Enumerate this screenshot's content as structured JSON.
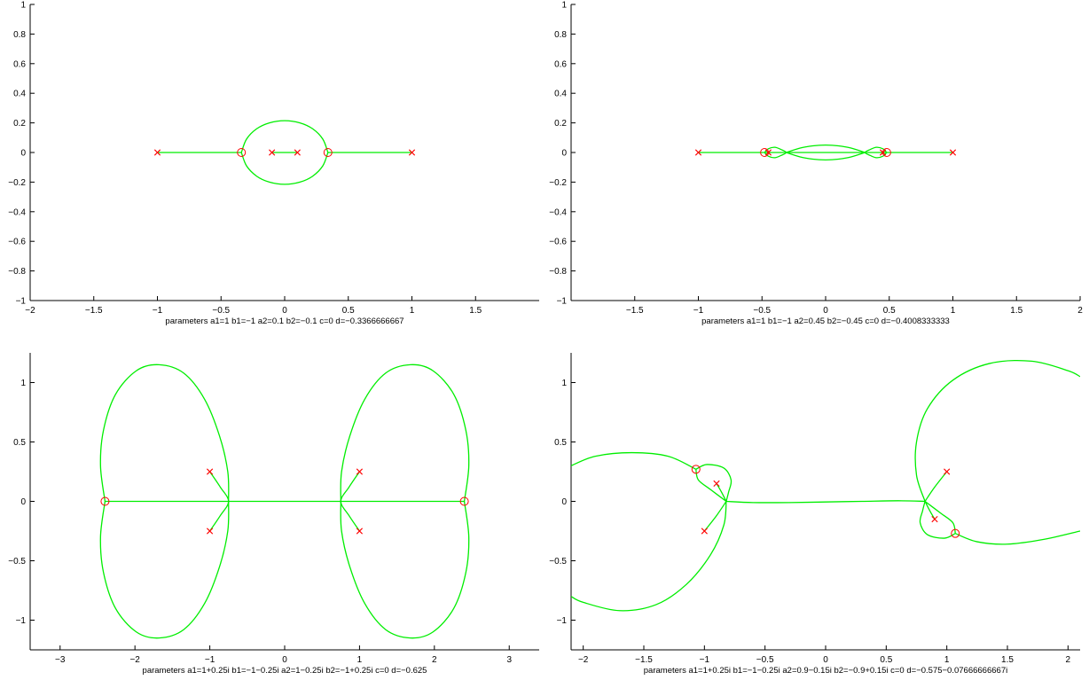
{
  "chart_data": [
    {
      "type": "scatter",
      "title": "",
      "xlabel": "parameters a1=1 b1=−1 a2=0.1 b2=−0.1 c=0 d=−0.3366666667",
      "ylabel": "",
      "xlim": [
        -2,
        2
      ],
      "ylim": [
        -1,
        1
      ],
      "xticks": [
        "−2",
        "−1.5",
        "−1",
        "−0.5",
        "0",
        "0.5",
        "1",
        "1.5"
      ],
      "xtick_values": [
        -2,
        -1.5,
        -1,
        -0.5,
        0,
        0.5,
        1,
        1.5
      ],
      "yticks": [
        "−1",
        "−0.8",
        "−0.6",
        "−0.4",
        "−0.2",
        "0",
        "0.2",
        "0.4",
        "0.6",
        "0.8",
        "1"
      ],
      "ytick_values": [
        -1,
        -0.8,
        -0.6,
        -0.4,
        -0.2,
        0,
        0.2,
        0.4,
        0.6,
        0.8,
        1
      ],
      "poles": [
        [
          -1,
          0
        ],
        [
          -0.1,
          0
        ],
        [
          0.1,
          0
        ],
        [
          1,
          0
        ]
      ],
      "zeros": [
        [
          -0.34,
          0
        ],
        [
          0.34,
          0
        ]
      ],
      "curves": [
        [
          [
            -0.34,
            0
          ],
          [
            -0.3,
            0.09
          ],
          [
            -0.22,
            0.16
          ],
          [
            -0.12,
            0.2
          ],
          [
            0,
            0.215
          ],
          [
            0.12,
            0.2
          ],
          [
            0.22,
            0.16
          ],
          [
            0.3,
            0.09
          ],
          [
            0.34,
            0
          ]
        ],
        [
          [
            -0.34,
            0
          ],
          [
            -0.3,
            -0.09
          ],
          [
            -0.22,
            -0.16
          ],
          [
            -0.12,
            -0.2
          ],
          [
            0,
            -0.215
          ],
          [
            0.12,
            -0.2
          ],
          [
            0.22,
            -0.16
          ],
          [
            0.3,
            -0.09
          ],
          [
            0.34,
            0
          ]
        ],
        [
          [
            -1,
            0
          ],
          [
            -0.34,
            0
          ]
        ],
        [
          [
            0.34,
            0
          ],
          [
            1,
            0
          ]
        ],
        [
          [
            -0.1,
            0
          ],
          [
            0.1,
            0
          ]
        ]
      ]
    },
    {
      "type": "scatter",
      "title": "",
      "xlabel": "parameters a1=1 b1=−1 a2=0.45 b2=−0.45 c=0 d=−0.4008333333",
      "ylabel": "",
      "xlim": [
        -2,
        2
      ],
      "ylim": [
        -1,
        1
      ],
      "xticks": [
        "−1.5",
        "−1",
        "−0.5",
        "0",
        "0.5",
        "1",
        "1.5",
        "2"
      ],
      "xtick_values": [
        -1.5,
        -1,
        -0.5,
        0,
        0.5,
        1,
        1.5,
        2
      ],
      "yticks": [
        "−1",
        "−0.8",
        "−0.6",
        "−0.4",
        "−0.2",
        "0",
        "0.2",
        "0.4",
        "0.6",
        "0.8",
        "1"
      ],
      "ytick_values": [
        -1,
        -0.8,
        -0.6,
        -0.4,
        -0.2,
        0,
        0.2,
        0.4,
        0.6,
        0.8,
        1
      ],
      "poles": [
        [
          -1,
          0
        ],
        [
          -0.45,
          0
        ],
        [
          0.45,
          0
        ],
        [
          1,
          0
        ]
      ],
      "zeros": [
        [
          -0.48,
          0
        ],
        [
          0.48,
          0
        ]
      ],
      "curves": [
        [
          [
            -0.31,
            0
          ],
          [
            -0.2,
            0.03
          ],
          [
            -0.1,
            0.045
          ],
          [
            0,
            0.05
          ],
          [
            0.1,
            0.045
          ],
          [
            0.2,
            0.03
          ],
          [
            0.31,
            0
          ]
        ],
        [
          [
            -0.31,
            0
          ],
          [
            -0.2,
            -0.03
          ],
          [
            -0.1,
            -0.045
          ],
          [
            0,
            -0.05
          ],
          [
            0.1,
            -0.045
          ],
          [
            0.2,
            -0.03
          ],
          [
            0.31,
            0
          ]
        ],
        [
          [
            -0.48,
            0
          ],
          [
            -0.45,
            0.025
          ],
          [
            -0.4,
            0.035
          ],
          [
            -0.35,
            0.02
          ],
          [
            -0.31,
            0
          ],
          [
            -0.35,
            -0.02
          ],
          [
            -0.4,
            -0.035
          ],
          [
            -0.45,
            -0.025
          ],
          [
            -0.48,
            0
          ]
        ],
        [
          [
            0.48,
            0
          ],
          [
            0.45,
            0.025
          ],
          [
            0.4,
            0.035
          ],
          [
            0.35,
            0.02
          ],
          [
            0.31,
            0
          ],
          [
            0.35,
            -0.02
          ],
          [
            0.4,
            -0.035
          ],
          [
            0.45,
            -0.025
          ],
          [
            0.48,
            0
          ]
        ],
        [
          [
            -1,
            0
          ],
          [
            1,
            0
          ]
        ]
      ]
    },
    {
      "type": "scatter",
      "title": "",
      "xlabel": "parameters a1=1+0.25i b1=−1−0.25i a2=1−0.25i b2=−1+0.25i c=0 d=−0.625",
      "ylabel": "",
      "xlim": [
        -3.4,
        3.4
      ],
      "ylim": [
        -1.25,
        1.25
      ],
      "xticks": [
        "−3",
        "−2",
        "−1",
        "0",
        "1",
        "2",
        "3"
      ],
      "xtick_values": [
        -3,
        -2,
        -1,
        0,
        1,
        2,
        3
      ],
      "yticks": [
        "−1",
        "−0.5",
        "0",
        "0.5",
        "1"
      ],
      "ytick_values": [
        -1,
        -0.5,
        0,
        0.5,
        1
      ],
      "poles": [
        [
          -1,
          0.25
        ],
        [
          -1,
          -0.25
        ],
        [
          1,
          0.25
        ],
        [
          1,
          -0.25
        ]
      ],
      "zeros": [
        [
          -2.4,
          0
        ],
        [
          2.4,
          0
        ]
      ],
      "curves": [
        [
          [
            -2.4,
            0
          ],
          [
            -2.46,
            0.3
          ],
          [
            -2.42,
            0.6
          ],
          [
            -2.26,
            0.9
          ],
          [
            -1.98,
            1.1
          ],
          [
            -1.68,
            1.15
          ],
          [
            -1.35,
            1.08
          ],
          [
            -1.07,
            0.86
          ],
          [
            -0.87,
            0.55
          ],
          [
            -0.76,
            0.25
          ],
          [
            -0.75,
            0
          ]
        ],
        [
          [
            -2.4,
            0
          ],
          [
            -2.46,
            -0.3
          ],
          [
            -2.42,
            -0.6
          ],
          [
            -2.26,
            -0.9
          ],
          [
            -1.98,
            -1.1
          ],
          [
            -1.68,
            -1.15
          ],
          [
            -1.35,
            -1.08
          ],
          [
            -1.07,
            -0.86
          ],
          [
            -0.87,
            -0.55
          ],
          [
            -0.76,
            -0.25
          ],
          [
            -0.75,
            0
          ]
        ],
        [
          [
            2.4,
            0
          ],
          [
            2.46,
            0.3
          ],
          [
            2.42,
            0.6
          ],
          [
            2.26,
            0.9
          ],
          [
            1.98,
            1.1
          ],
          [
            1.68,
            1.15
          ],
          [
            1.35,
            1.08
          ],
          [
            1.07,
            0.86
          ],
          [
            0.87,
            0.55
          ],
          [
            0.76,
            0.25
          ],
          [
            0.75,
            0
          ]
        ],
        [
          [
            2.4,
            0
          ],
          [
            2.46,
            -0.3
          ],
          [
            2.42,
            -0.6
          ],
          [
            2.26,
            -0.9
          ],
          [
            1.98,
            -1.1
          ],
          [
            1.68,
            -1.15
          ],
          [
            1.35,
            -1.08
          ],
          [
            1.07,
            -0.86
          ],
          [
            0.87,
            -0.55
          ],
          [
            0.76,
            -0.25
          ],
          [
            0.75,
            0
          ]
        ],
        [
          [
            -1,
            0.25
          ],
          [
            -0.86,
            0.12
          ],
          [
            -0.75,
            0
          ],
          [
            -0.86,
            -0.12
          ],
          [
            -1,
            -0.25
          ]
        ],
        [
          [
            1,
            0.25
          ],
          [
            0.86,
            0.12
          ],
          [
            0.75,
            0
          ],
          [
            0.86,
            -0.12
          ],
          [
            1,
            -0.25
          ]
        ],
        [
          [
            -2.4,
            0
          ],
          [
            2.4,
            0
          ]
        ]
      ]
    },
    {
      "type": "scatter",
      "title": "",
      "xlabel": "parameters a1=1+0.25i b1=−1−0.25i a2=0.9−0.15i b2=−0.9+0.15i c=0 d=−0.575−0.07666666667i",
      "ylabel": "",
      "xlim": [
        -2.1,
        2.1
      ],
      "ylim": [
        -1.25,
        1.25
      ],
      "xticks": [
        "−2",
        "−1.5",
        "−1",
        "−0.5",
        "0",
        "0.5",
        "1",
        "1.5",
        "2"
      ],
      "xtick_values": [
        -2,
        -1.5,
        -1,
        -0.5,
        0,
        0.5,
        1,
        1.5,
        2
      ],
      "yticks": [
        "−1",
        "−0.5",
        "0",
        "0.5",
        "1"
      ],
      "ytick_values": [
        -1,
        -0.5,
        0,
        0.5,
        1
      ],
      "poles": [
        [
          -1,
          -0.25
        ],
        [
          -0.9,
          0.15
        ],
        [
          0.9,
          -0.15
        ],
        [
          1,
          0.25
        ]
      ],
      "zeros": [
        [
          -1.07,
          0.27
        ],
        [
          1.07,
          -0.27
        ]
      ],
      "curves": [
        [
          [
            -2.1,
            0.3
          ],
          [
            -1.9,
            0.38
          ],
          [
            -1.6,
            0.41
          ],
          [
            -1.3,
            0.38
          ],
          [
            -1.07,
            0.27
          ]
        ],
        [
          [
            -1.07,
            0.27
          ],
          [
            -1.05,
            0.18
          ],
          [
            -0.95,
            0.1
          ],
          [
            -0.82,
            0
          ]
        ],
        [
          [
            -1.07,
            0.27
          ],
          [
            -0.98,
            0.31
          ],
          [
            -0.84,
            0.28
          ],
          [
            -0.78,
            0.18
          ],
          [
            -0.8,
            0.08
          ],
          [
            -0.82,
            0
          ]
        ],
        [
          [
            -0.82,
            0
          ],
          [
            -0.84,
            -0.2
          ],
          [
            -0.95,
            -0.45
          ],
          [
            -1.15,
            -0.7
          ],
          [
            -1.4,
            -0.87
          ],
          [
            -1.7,
            -0.92
          ],
          [
            -2.0,
            -0.85
          ],
          [
            -2.1,
            -0.8
          ]
        ],
        [
          [
            -1,
            -0.25
          ],
          [
            -0.9,
            -0.12
          ],
          [
            -0.82,
            0
          ]
        ],
        [
          [
            -0.9,
            0.15
          ],
          [
            -0.86,
            0.08
          ],
          [
            -0.82,
            0
          ]
        ],
        [
          [
            -0.82,
            0
          ],
          [
            -0.6,
            -0.01
          ],
          [
            -0.3,
            -0.01
          ],
          [
            0,
            -0.005
          ],
          [
            0.3,
            0
          ],
          [
            0.6,
            0.005
          ],
          [
            0.82,
            0
          ]
        ],
        [
          [
            1.07,
            -0.27
          ],
          [
            1.05,
            -0.18
          ],
          [
            0.95,
            -0.1
          ],
          [
            0.82,
            0
          ]
        ],
        [
          [
            1.07,
            -0.27
          ],
          [
            0.98,
            -0.31
          ],
          [
            0.84,
            -0.28
          ],
          [
            0.78,
            -0.18
          ],
          [
            0.8,
            -0.08
          ],
          [
            0.82,
            0
          ]
        ],
        [
          [
            0.82,
            0
          ],
          [
            0.75,
            0.22
          ],
          [
            0.75,
            0.5
          ],
          [
            0.84,
            0.78
          ],
          [
            1.05,
            1.02
          ],
          [
            1.35,
            1.16
          ],
          [
            1.7,
            1.18
          ],
          [
            2.0,
            1.1
          ],
          [
            2.1,
            1.05
          ]
        ],
        [
          [
            1.07,
            -0.27
          ],
          [
            1.25,
            -0.34
          ],
          [
            1.5,
            -0.36
          ],
          [
            1.8,
            -0.32
          ],
          [
            2.1,
            -0.25
          ]
        ],
        [
          [
            1,
            0.25
          ],
          [
            0.9,
            0.12
          ],
          [
            0.82,
            0
          ]
        ],
        [
          [
            0.9,
            -0.15
          ],
          [
            0.86,
            -0.08
          ],
          [
            0.82,
            0
          ]
        ]
      ]
    }
  ]
}
